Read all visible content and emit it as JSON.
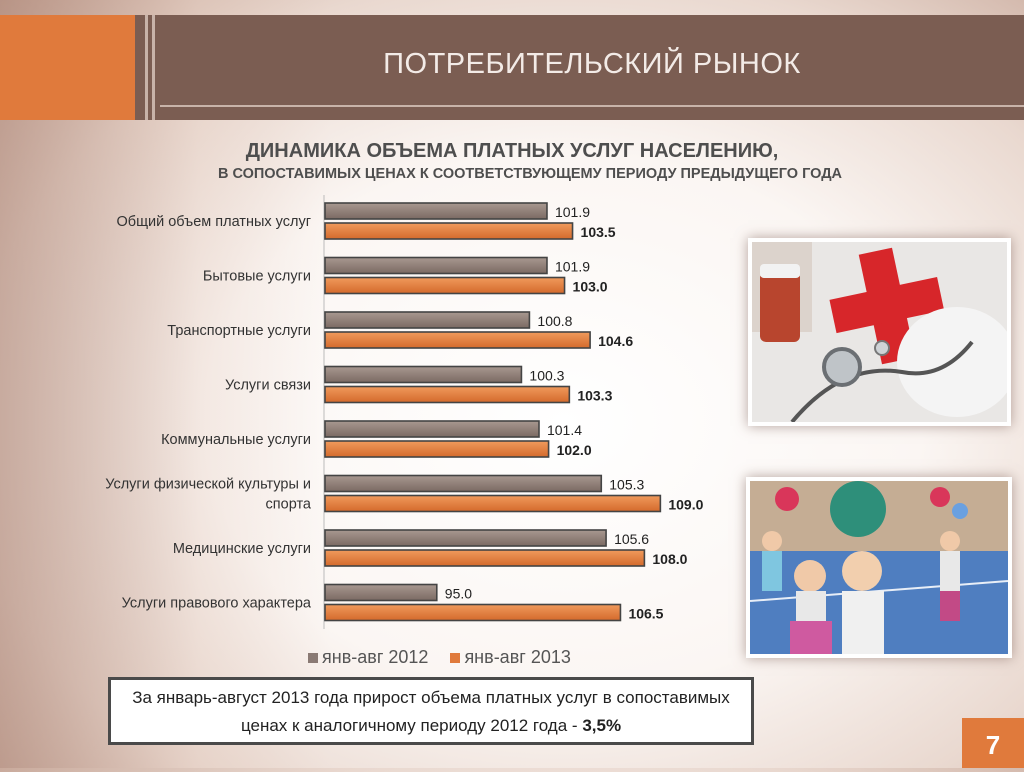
{
  "header": {
    "title": "ПОТРЕБИТЕЛЬСКИЙ РЫНОК"
  },
  "subtitle": {
    "line1": "ДИНАМИКА ОБЪЕМА ПЛАТНЫХ УСЛУГ НАСЕЛЕНИЮ,",
    "line2": "В СОПОСТАВИМЫХ ЦЕНАХ К СООТВЕТСТВУЮЩЕМУ ПЕРИОДУ ПРЕДЫДУЩЕГО ГОДА"
  },
  "chart_data": {
    "type": "bar",
    "orientation": "horizontal",
    "title": "",
    "xlabel": "",
    "ylabel": "",
    "categories": [
      [
        "Общий объем платных услуг"
      ],
      [
        "Бытовые услуги"
      ],
      [
        "Транспортные услуги"
      ],
      [
        "Услуги связи"
      ],
      [
        "Коммунальные услуги"
      ],
      [
        "Услуги физической культуры и",
        "спорта"
      ],
      [
        "Медицинские услуги"
      ],
      [
        "Услуги правового характера"
      ]
    ],
    "series": [
      {
        "name": "янв-авг 2012",
        "values": [
          101.9,
          101.9,
          100.8,
          100.3,
          101.4,
          105.3,
          105.6,
          95.0
        ],
        "color": "#8a7a74"
      },
      {
        "name": "янв-авг 2013",
        "values": [
          103.5,
          103.0,
          104.6,
          103.3,
          102.0,
          109.0,
          108.0,
          106.5
        ],
        "color": "#e07a3c"
      }
    ],
    "value_labels": [
      [
        "101.9",
        "101.9",
        "100.8",
        "100.3",
        "101.4",
        "105.3",
        "105.6",
        "95.0"
      ],
      [
        "103.5",
        "103.0",
        "104.6",
        "103.3",
        "102.0",
        "109.0",
        "108.0",
        "106.5"
      ]
    ],
    "xlim": [
      88,
      112
    ],
    "grid": false,
    "legend_position": "bottom"
  },
  "legend": {
    "items": [
      "янв-авг 2012",
      "янв-авг 2013"
    ]
  },
  "note": {
    "text": "За январь-август 2013 года прирост объема платных услуг в сопоставимых ценах к аналогичному периоду 2012 года -",
    "value": "3,5%"
  },
  "photos": {
    "first": "medical-photo",
    "second": "sports-photo"
  },
  "page": {
    "number": "7"
  },
  "colors": {
    "accent": "#e07a3c",
    "header": "#7b5d52",
    "bar2012": "#8a7a74",
    "bar2013": "#e07a3c"
  }
}
